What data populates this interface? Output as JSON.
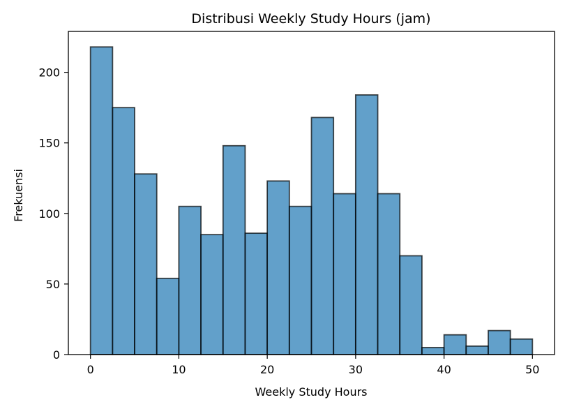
{
  "chart_data": {
    "type": "bar",
    "title": "Distribusi Weekly Study Hours (jam)",
    "xlabel": "Weekly Study Hours",
    "ylabel": "Frekuensi",
    "bin_edges": [
      0,
      2.5,
      5,
      7.5,
      10,
      12.5,
      15,
      17.5,
      20,
      22.5,
      25,
      27.5,
      30,
      32.5,
      35,
      37.5,
      40,
      42.5,
      45,
      47.5,
      50
    ],
    "values": [
      218,
      175,
      128,
      54,
      105,
      85,
      148,
      86,
      123,
      105,
      168,
      114,
      184,
      114,
      70,
      5,
      14,
      6,
      17,
      11
    ],
    "xlim": [
      -2.5,
      52.5
    ],
    "ylim": [
      0,
      229
    ],
    "xticks": [
      0,
      10,
      20,
      30,
      40,
      50
    ],
    "xtick_labels": [
      "0",
      "10",
      "20",
      "30",
      "40",
      "50"
    ],
    "yticks": [
      0,
      50,
      100,
      150,
      200
    ],
    "ytick_labels": [
      "0",
      "50",
      "100",
      "150",
      "200"
    ],
    "grid": false,
    "bar_color": "#1f77b4",
    "edge_color": "#000000"
  }
}
